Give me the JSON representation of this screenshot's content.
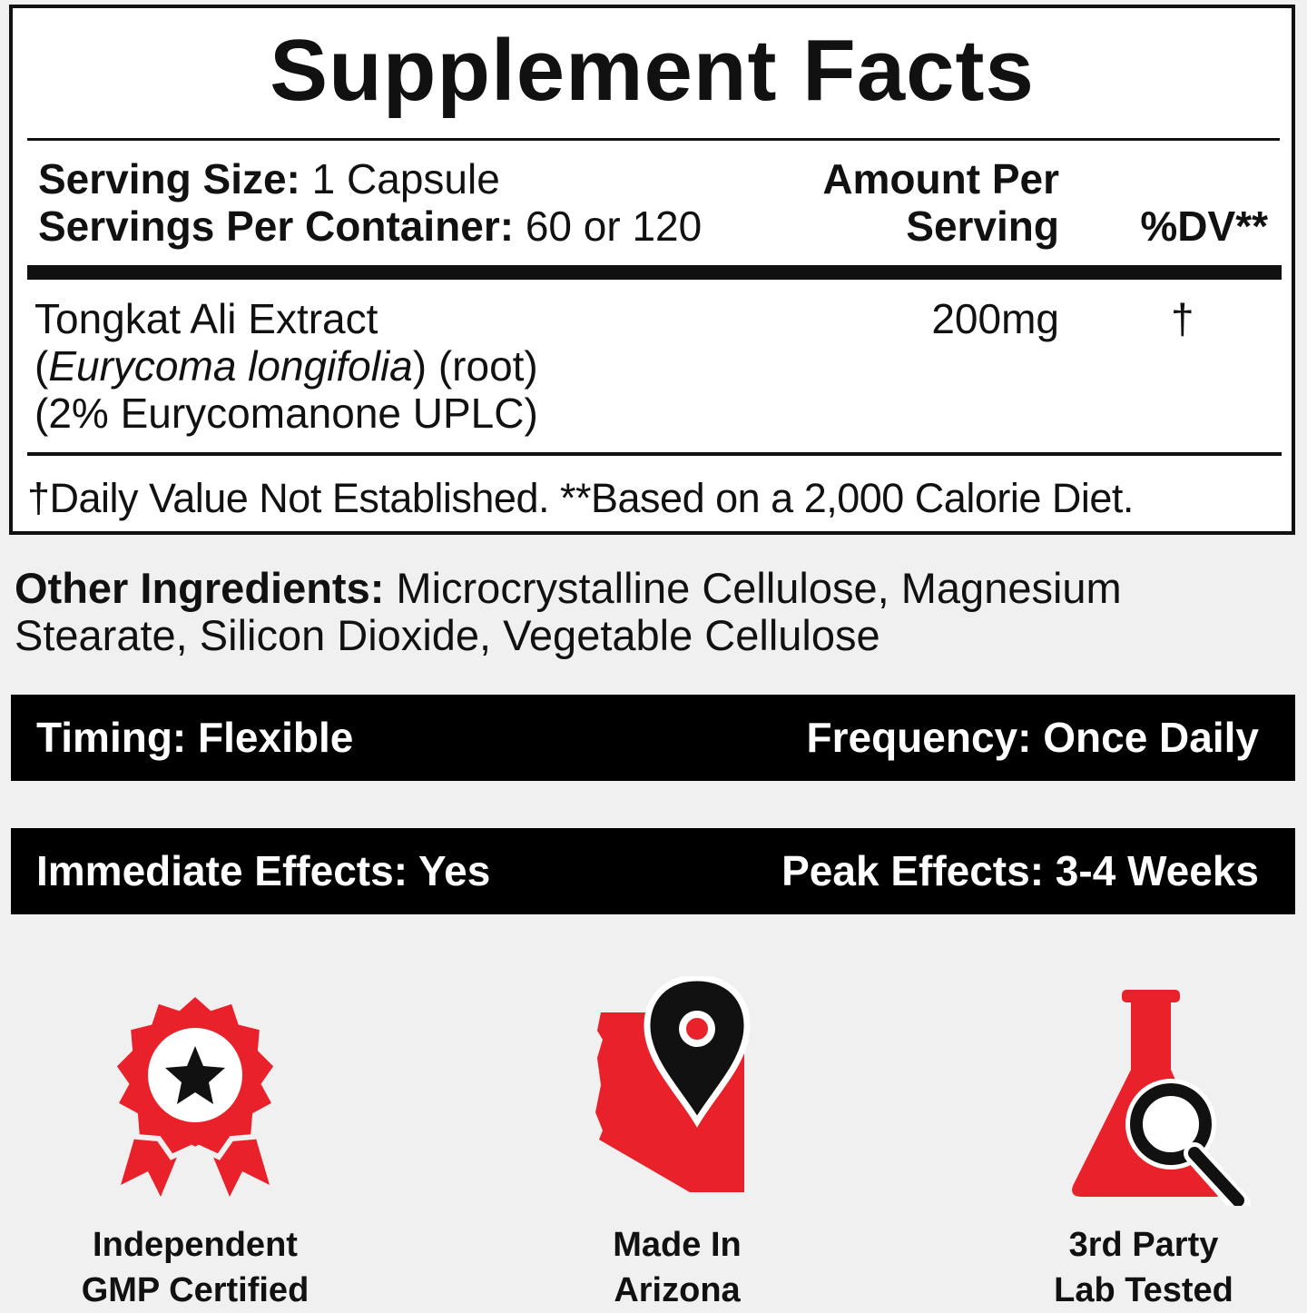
{
  "facts": {
    "title": "Supplement Facts",
    "serving_size_label": "Serving Size:",
    "serving_size_value": " 1 Capsule",
    "servings_label": "Servings Per Container:",
    "servings_value": " 60 or 120",
    "amount_header_1": "Amount Per",
    "amount_header_2": "Serving",
    "dv_header": "%DV**",
    "ingredient": {
      "name": "Tongkat Ali Extract",
      "latin_open": "(",
      "latin": "Eurycoma longifolia",
      "latin_close": ") (root)",
      "standardization": "(2% Eurycomanone UPLC)",
      "amount": "200mg",
      "dv": "†"
    },
    "footnote": "†Daily Value Not Established. **Based on a 2,000 Calorie Diet."
  },
  "other_ingredients": {
    "label": "Other Ingredients:",
    "line1": " Microcrystalline Cellulose, Magnesium",
    "line2": "Stearate, Silicon Dioxide, Vegetable Cellulose"
  },
  "bars": [
    {
      "left": "Timing: Flexible",
      "right": "Frequency: Once Daily"
    },
    {
      "left": "Immediate Effects: Yes",
      "right": "Peak Effects: 3-4 Weeks"
    }
  ],
  "badges": [
    {
      "icon": "award-ribbon-icon",
      "line1": "Independent",
      "line2": "GMP Certified"
    },
    {
      "icon": "arizona-map-pin-icon",
      "line1": "Made In",
      "line2": "Arizona"
    },
    {
      "icon": "flask-magnifier-icon",
      "line1": "3rd Party",
      "line2": "Lab Tested"
    }
  ],
  "colors": {
    "accent": "#e8212a",
    "background": "#f0f0f0",
    "bar": "#000000"
  }
}
